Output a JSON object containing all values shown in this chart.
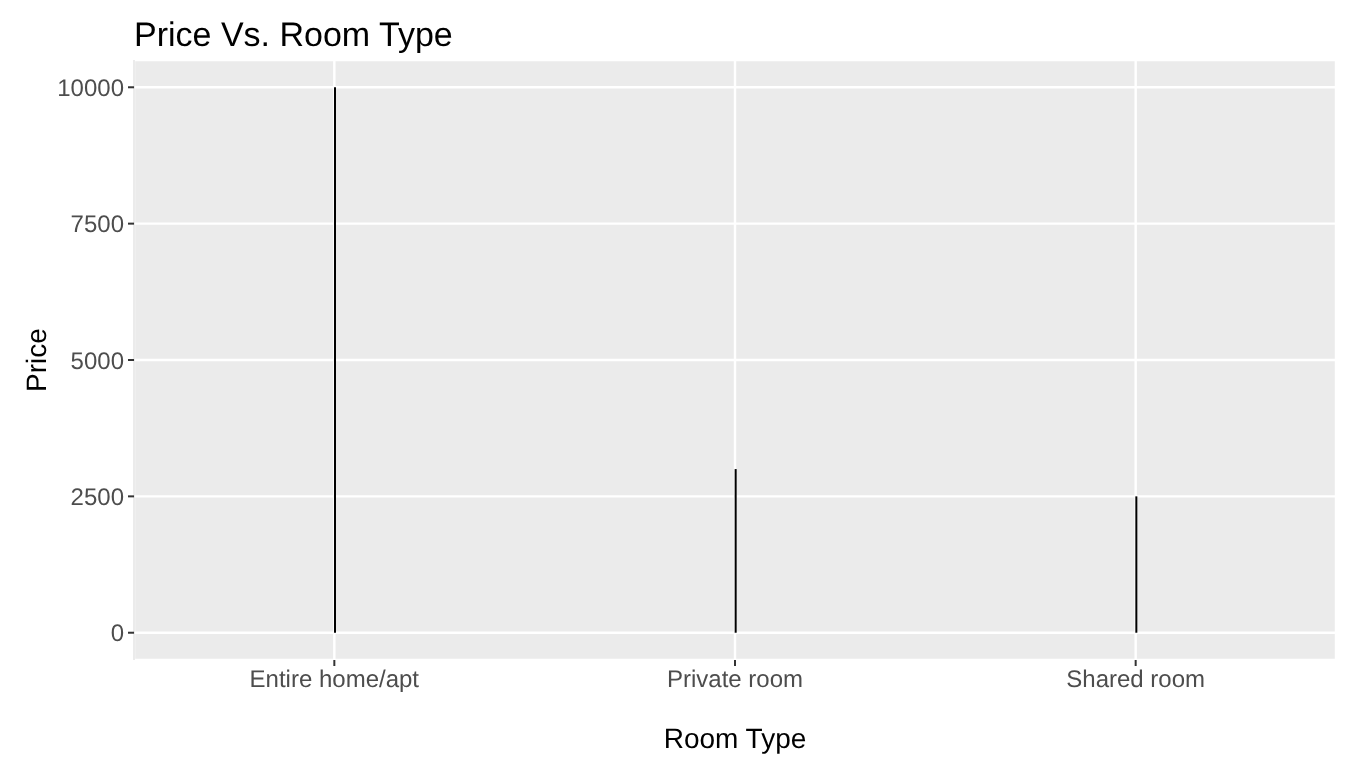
{
  "chart_data": {
    "type": "bar",
    "title": "Price Vs. Room Type",
    "xlabel": "Room Type",
    "ylabel": "Price",
    "categories": [
      "Entire home/apt",
      "Private room",
      "Shared room"
    ],
    "values": [
      10000,
      3000,
      2500
    ],
    "color": "#000000",
    "ylim": [
      -500,
      10500
    ],
    "yticks": [
      0,
      2500,
      5000,
      7500,
      10000
    ],
    "grid": true
  }
}
